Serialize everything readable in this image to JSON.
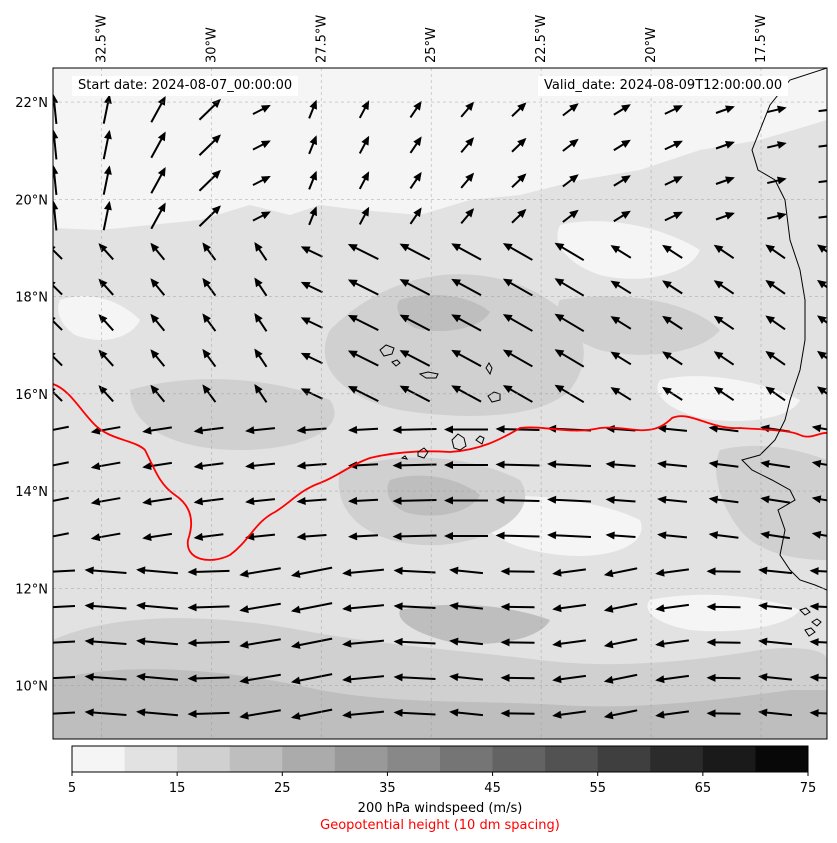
{
  "header": {
    "start_date": "Start date: 2024-08-07_00:00:00",
    "valid_date": "Valid_date: 2024-08-09T12:00:00.00"
  },
  "axes": {
    "lon_ticks": [
      "32.5°W",
      "30°W",
      "27.5°W",
      "25°W",
      "22.5°W",
      "20°W",
      "17.5°W"
    ],
    "lat_ticks": [
      "22°N",
      "20°N",
      "18°N",
      "16°N",
      "14°N",
      "12°N",
      "10°N"
    ],
    "lon_values": [
      -32.5,
      -30,
      -27.5,
      -25,
      -22.5,
      -20,
      -17.5
    ],
    "lat_values": [
      22,
      20,
      18,
      16,
      14,
      12,
      10
    ],
    "lon_range": [
      -33.6,
      -16.0
    ],
    "lat_range": [
      8.9,
      22.7
    ],
    "gridlines": true
  },
  "colorbar": {
    "levels": [
      5,
      10,
      15,
      20,
      25,
      30,
      35,
      40,
      45,
      50,
      55,
      60,
      65,
      70,
      75
    ],
    "tick_labels": [
      "5",
      "15",
      "25",
      "35",
      "45",
      "55",
      "65",
      "75"
    ],
    "colors": [
      "#f5f5f5",
      "#e2e2e2",
      "#d0d0d0",
      "#bebebe",
      "#ababab",
      "#999999",
      "#888888",
      "#757575",
      "#636363",
      "#525252",
      "#3f3f3f",
      "#2b2b2b",
      "#1a1a1a",
      "#080808"
    ],
    "title": "200 hPa windspeed (m/s)",
    "subtitle": "Geopotential height (10 dm spacing)"
  },
  "styles": {
    "contour_color": "#ff0000",
    "coast_color": "#000000",
    "arrow_color": "#000000"
  }
}
